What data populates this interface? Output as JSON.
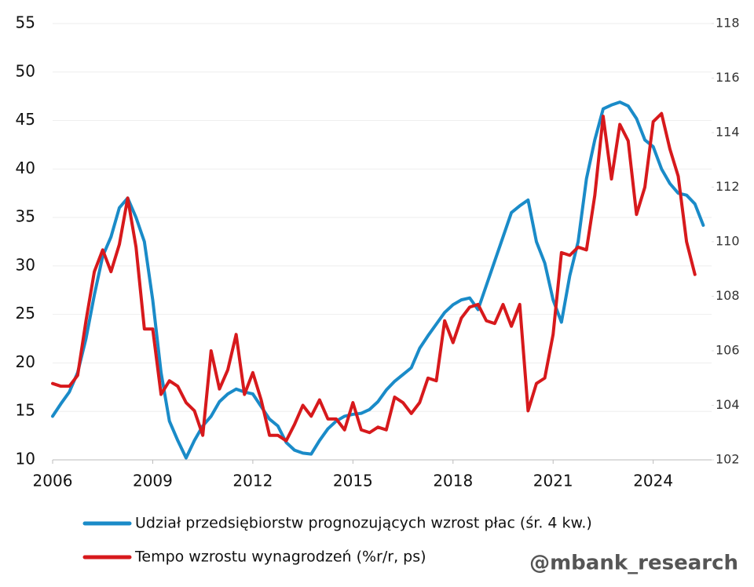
{
  "chart_data": {
    "type": "line",
    "x": [
      2006,
      2006.25,
      2006.5,
      2006.75,
      2007,
      2007.25,
      2007.5,
      2007.75,
      2008,
      2008.25,
      2008.5,
      2008.75,
      2009,
      2009.25,
      2009.5,
      2009.75,
      2010,
      2010.25,
      2010.5,
      2010.75,
      2011,
      2011.25,
      2011.5,
      2011.75,
      2012,
      2012.25,
      2012.5,
      2012.75,
      2013,
      2013.25,
      2013.5,
      2013.75,
      2014,
      2014.25,
      2014.5,
      2014.75,
      2015,
      2015.25,
      2015.5,
      2015.75,
      2016,
      2016.25,
      2016.5,
      2016.75,
      2017,
      2017.25,
      2017.5,
      2017.75,
      2018,
      2018.25,
      2018.5,
      2018.75,
      2019,
      2019.25,
      2019.5,
      2019.75,
      2020,
      2020.25,
      2020.5,
      2020.75,
      2021,
      2021.25,
      2021.5,
      2021.75,
      2022,
      2022.25,
      2022.5,
      2022.75,
      2023,
      2023.25,
      2023.5,
      2023.75,
      2024,
      2024.25,
      2024.5,
      2024.75,
      2025,
      2025.25,
      2025.5
    ],
    "series": [
      {
        "name": "Udział przedsiębiorstw prognozujących wzrost płac (śr. 4 kw.)",
        "color": "#1a8bc8",
        "values": [
          14.5,
          15.8,
          17.0,
          19.0,
          22.5,
          27.0,
          31.0,
          33.0,
          36.0,
          37.0,
          35.0,
          32.5,
          26.5,
          19.0,
          14.0,
          12.0,
          10.2,
          12.0,
          13.5,
          14.5,
          16.0,
          16.8,
          17.3,
          17.0,
          16.8,
          15.5,
          14.2,
          13.5,
          11.8,
          11.0,
          10.7,
          10.6,
          12.0,
          13.2,
          14.0,
          14.5,
          14.7,
          14.8,
          15.2,
          16.0,
          17.2,
          18.1,
          18.8,
          19.5,
          21.5,
          22.8,
          24.0,
          25.2,
          26.0,
          26.5,
          26.7,
          25.5,
          28.0,
          30.5,
          33.0,
          35.5,
          36.2,
          36.8,
          32.5,
          30.3,
          26.5,
          24.2,
          29.0,
          32.5,
          39.0,
          43.0,
          46.2,
          46.6,
          46.9,
          46.5,
          45.2,
          43.0,
          42.3,
          40.0,
          38.5,
          37.5,
          37.3,
          36.4,
          34.2
        ]
      },
      {
        "name": "Tempo wzrostu wynagrodzeń (%r/r, ps)",
        "color": "#d7191c",
        "axis": "y2",
        "values": [
          104.8,
          104.7,
          104.7,
          105.1,
          107.1,
          108.9,
          109.7,
          108.9,
          109.9,
          111.6,
          109.8,
          106.8,
          106.8,
          104.4,
          104.9,
          104.7,
          104.1,
          103.8,
          102.9,
          106.0,
          104.6,
          105.3,
          106.6,
          104.4,
          105.2,
          104.2,
          102.9,
          102.9,
          102.7,
          103.3,
          104.0,
          103.6,
          104.2,
          103.5,
          103.5,
          103.1,
          104.1,
          103.1,
          103.0,
          103.2,
          103.1,
          104.3,
          104.1,
          103.7,
          104.1,
          105.0,
          104.9,
          107.1,
          106.3,
          107.2,
          107.6,
          107.7,
          107.1,
          107.0,
          107.7,
          106.9,
          107.7,
          103.8,
          104.8,
          105.0,
          106.6,
          109.6,
          109.5,
          109.8,
          109.7,
          111.7,
          114.6,
          112.3,
          114.3,
          113.7,
          111.0,
          112.0,
          114.4,
          114.7,
          113.4,
          112.4,
          110.0,
          108.8,
          null
        ]
      }
    ],
    "xlim": [
      2006,
      2025.75
    ],
    "xticks": [
      2006,
      2009,
      2012,
      2015,
      2018,
      2021,
      2024
    ],
    "ylim": [
      10,
      55
    ],
    "yticks": [
      10,
      15,
      20,
      25,
      30,
      35,
      40,
      45,
      50,
      55
    ],
    "y2lim": [
      102,
      118
    ],
    "y2ticks": [
      102,
      104,
      106,
      108,
      110,
      112,
      114,
      116,
      118
    ],
    "grid": true,
    "legend": "bottom",
    "annotation": "@mbank_research"
  }
}
